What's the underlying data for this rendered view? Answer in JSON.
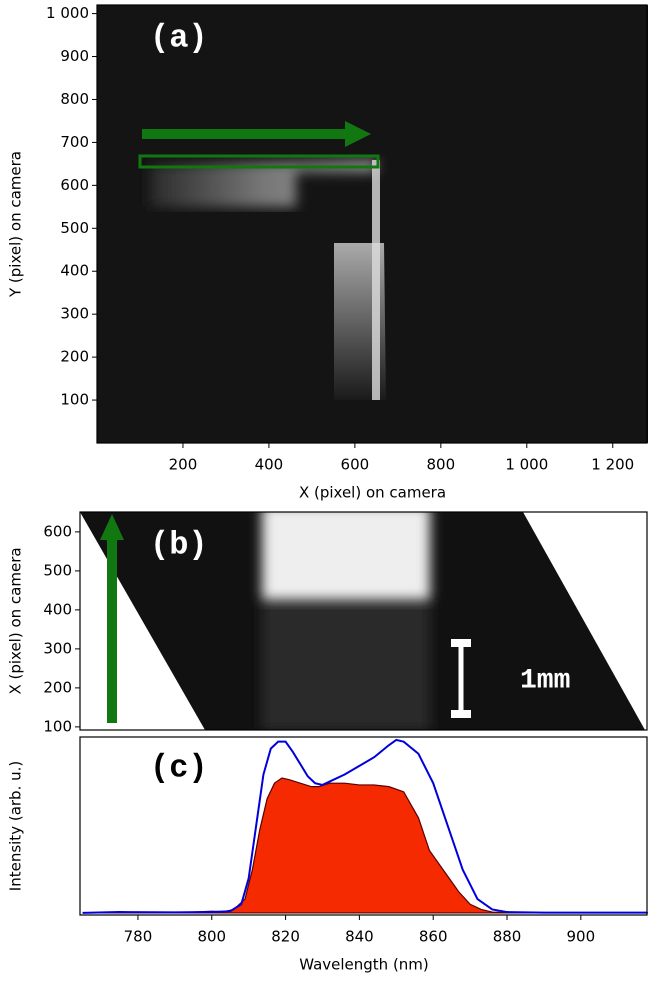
{
  "chart_data": [
    {
      "type": "image",
      "annotations": [
        "(a)"
      ],
      "xlabel": "X (pixel) on camera",
      "ylabel": "Y (pixel) on camera",
      "xlim": [
        0,
        1282
      ],
      "ylim": [
        0,
        1020
      ],
      "xticks": [
        200,
        400,
        600,
        800,
        {
          "value": 1000,
          "label": "1 000"
        },
        {
          "value": 1200,
          "label": "1 200"
        }
      ],
      "yticks": [
        100,
        200,
        300,
        400,
        500,
        600,
        700,
        800,
        900,
        {
          "value": 1000,
          "label": "1 000"
        }
      ]
    },
    {
      "type": "image",
      "annotations": [
        "(b)",
        "1mm"
      ],
      "ylabel": "X (pixel) on camera",
      "ylim": [
        92,
        651
      ],
      "yticks": [
        100,
        200,
        300,
        400,
        500,
        600
      ]
    },
    {
      "type": "line",
      "annotations": [
        "(c)"
      ],
      "xlabel": "Wavelength (nm)",
      "ylabel": "Intensity (arb. u.)",
      "xlim": [
        764.3,
        918.2
      ],
      "ylim": [
        -0.012,
        1.017
      ],
      "xticks": [
        780,
        800,
        820,
        840,
        860,
        880,
        900
      ],
      "series": [
        {
          "color": "#f52a00",
          "fill": true,
          "x": [
            765,
            780,
            795,
            800,
            803,
            806,
            809,
            811,
            813,
            815,
            817,
            819,
            821,
            824,
            827,
            829,
            832,
            836,
            840,
            844,
            848,
            852,
            856,
            859,
            863,
            867,
            870,
            873,
            876,
            880,
            900,
            918
          ],
          "values": [
            0,
            0.003,
            0.005,
            0.01,
            0.006,
            0.02,
            0.08,
            0.25,
            0.48,
            0.66,
            0.75,
            0.78,
            0.77,
            0.75,
            0.73,
            0.73,
            0.75,
            0.75,
            0.74,
            0.74,
            0.73,
            0.7,
            0.55,
            0.36,
            0.24,
            0.12,
            0.05,
            0.02,
            0.005,
            0.002,
            0.002,
            0.002
          ]
        },
        {
          "color": "#0000dd",
          "fill": false,
          "x": [
            765,
            775,
            790,
            800,
            805,
            808,
            810,
            812,
            814,
            816,
            818,
            820,
            822,
            824,
            826,
            828,
            830,
            832,
            836,
            840,
            844,
            848,
            850,
            852,
            856,
            860,
            864,
            868,
            872,
            876,
            880,
            890,
            918
          ],
          "values": [
            0,
            0.005,
            0.003,
            0.005,
            0.01,
            0.05,
            0.2,
            0.5,
            0.8,
            0.95,
            0.99,
            0.99,
            0.93,
            0.86,
            0.79,
            0.75,
            0.74,
            0.76,
            0.8,
            0.85,
            0.9,
            0.97,
            1.0,
            0.99,
            0.92,
            0.75,
            0.5,
            0.25,
            0.08,
            0.02,
            0.005,
            0.002,
            0.002
          ]
        }
      ]
    }
  ]
}
